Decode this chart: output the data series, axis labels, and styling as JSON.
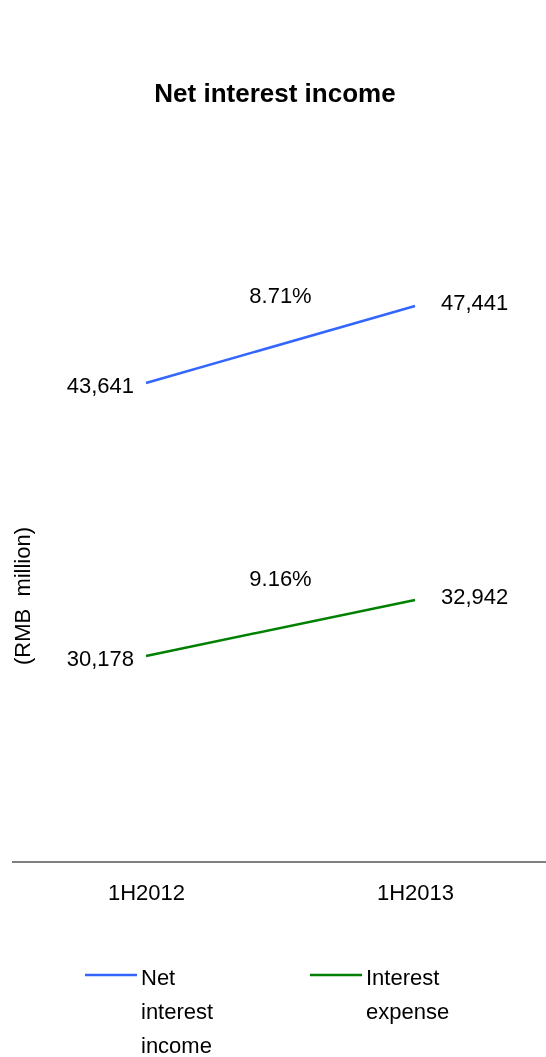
{
  "chart_data": {
    "type": "line",
    "title": "Net interest income",
    "ylabel": "(RMB  million)",
    "categories": [
      "1H2012",
      "1H2013"
    ],
    "series": [
      {
        "name": "Net interest income",
        "color": "#3366ff",
        "values": [
          43641,
          47441
        ],
        "value_labels": [
          "43,641",
          "47,441"
        ]
      },
      {
        "name": "Interest expense",
        "color": "#008000",
        "values": [
          30178,
          32942
        ],
        "value_labels": [
          "30,178",
          "32,942"
        ]
      }
    ],
    "legend": "bottom",
    "marker": "none",
    "line_style": "solid",
    "annotations": [
      "8.71%",
      "9.16%"
    ]
  }
}
